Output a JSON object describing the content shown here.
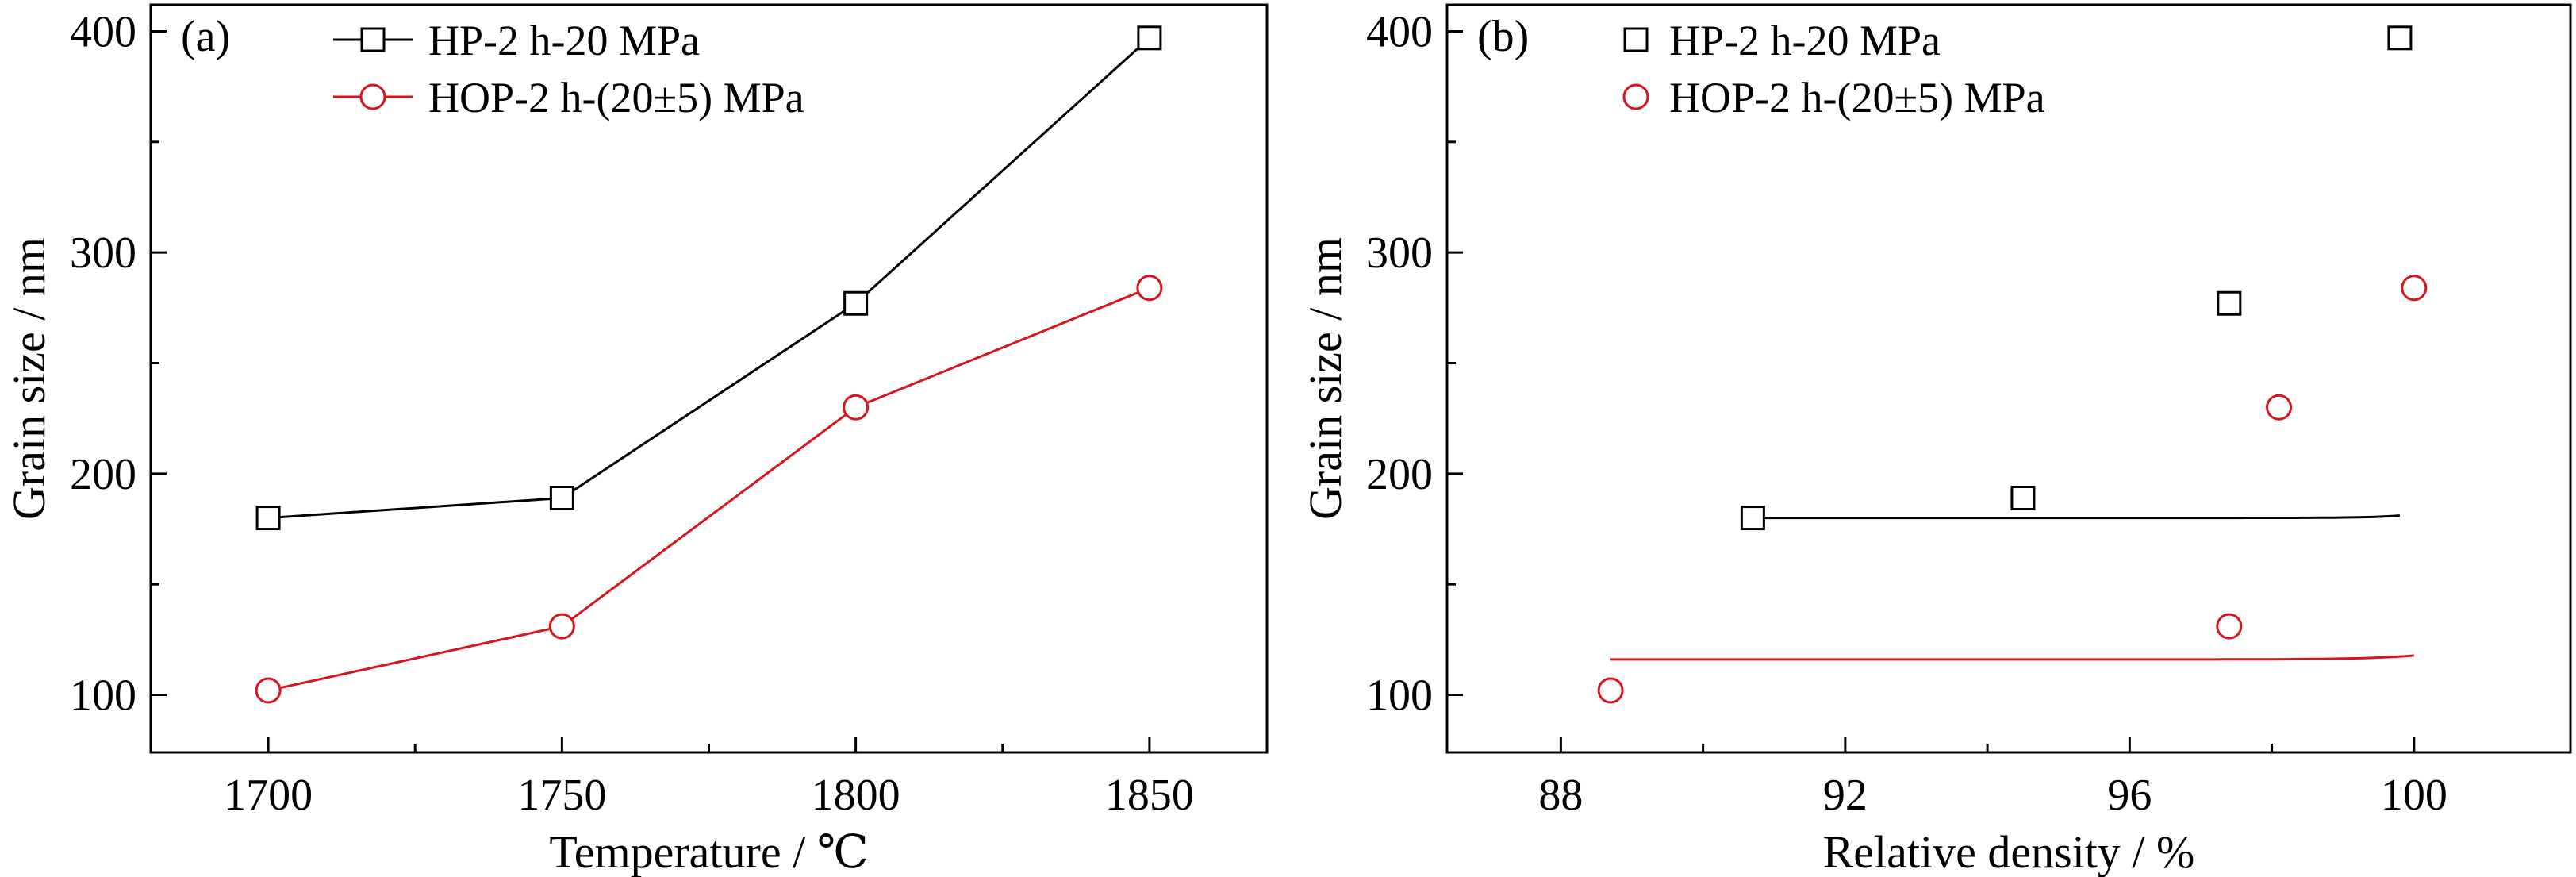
{
  "figure": {
    "colors": {
      "black": "#000000",
      "red": "#d6161c",
      "background": "#ffffff"
    }
  },
  "chart_data": [
    {
      "type": "line",
      "panel_label": "(a)",
      "xlabel": "Temperature / ℃",
      "ylabel": "Grain size / nm",
      "xlim": [
        1680,
        1870
      ],
      "ylim": [
        74,
        412
      ],
      "xticks": [
        1700,
        1750,
        1800,
        1850
      ],
      "yticks": [
        100,
        200,
        300,
        400
      ],
      "grid": false,
      "legend": "top-left",
      "series": [
        {
          "name": "HP-2 h-20 MPa",
          "marker": "square",
          "color": "#000000",
          "line": true,
          "x": [
            1700,
            1750,
            1800,
            1850
          ],
          "y": [
            180,
            189,
            277,
            397
          ]
        },
        {
          "name": "HOP-2 h-(20±5) MPa",
          "marker": "circle",
          "color": "#d6161c",
          "line": true,
          "x": [
            1700,
            1750,
            1800,
            1850
          ],
          "y": [
            102,
            131,
            230,
            284
          ]
        }
      ]
    },
    {
      "type": "scatter",
      "panel_label": "(b)",
      "xlabel": "Relative density / %",
      "ylabel": "Grain size / nm",
      "xlim": [
        86.4,
        102.2
      ],
      "ylim": [
        74,
        412
      ],
      "xticks": [
        88,
        92,
        96,
        100
      ],
      "yticks": [
        100,
        200,
        300,
        400
      ],
      "grid": false,
      "legend": "top-left",
      "series": [
        {
          "name": "HP-2 h-20 MPa",
          "marker": "square",
          "color": "#000000",
          "x": [
            90.7,
            94.5,
            97.4,
            99.8
          ],
          "y": [
            180,
            189,
            277,
            397
          ],
          "fit": {
            "form": "exponential",
            "a": 180,
            "b": 4.4e-09,
            "c": 2.12,
            "x0": 90.7,
            "x_range": [
              90.7,
              99.8
            ]
          }
        },
        {
          "name": "HOP-2 h-(20±5) MPa",
          "marker": "circle",
          "color": "#d6161c",
          "x": [
            88.7,
            97.4,
            98.1,
            100.0
          ],
          "y": [
            102,
            131,
            230,
            284
          ],
          "fit": {
            "form": "exponential",
            "a": 116,
            "b": 1.3e-07,
            "c": 1.455,
            "x0": 88.7,
            "x_range": [
              88.7,
              100.0
            ]
          }
        }
      ]
    }
  ]
}
